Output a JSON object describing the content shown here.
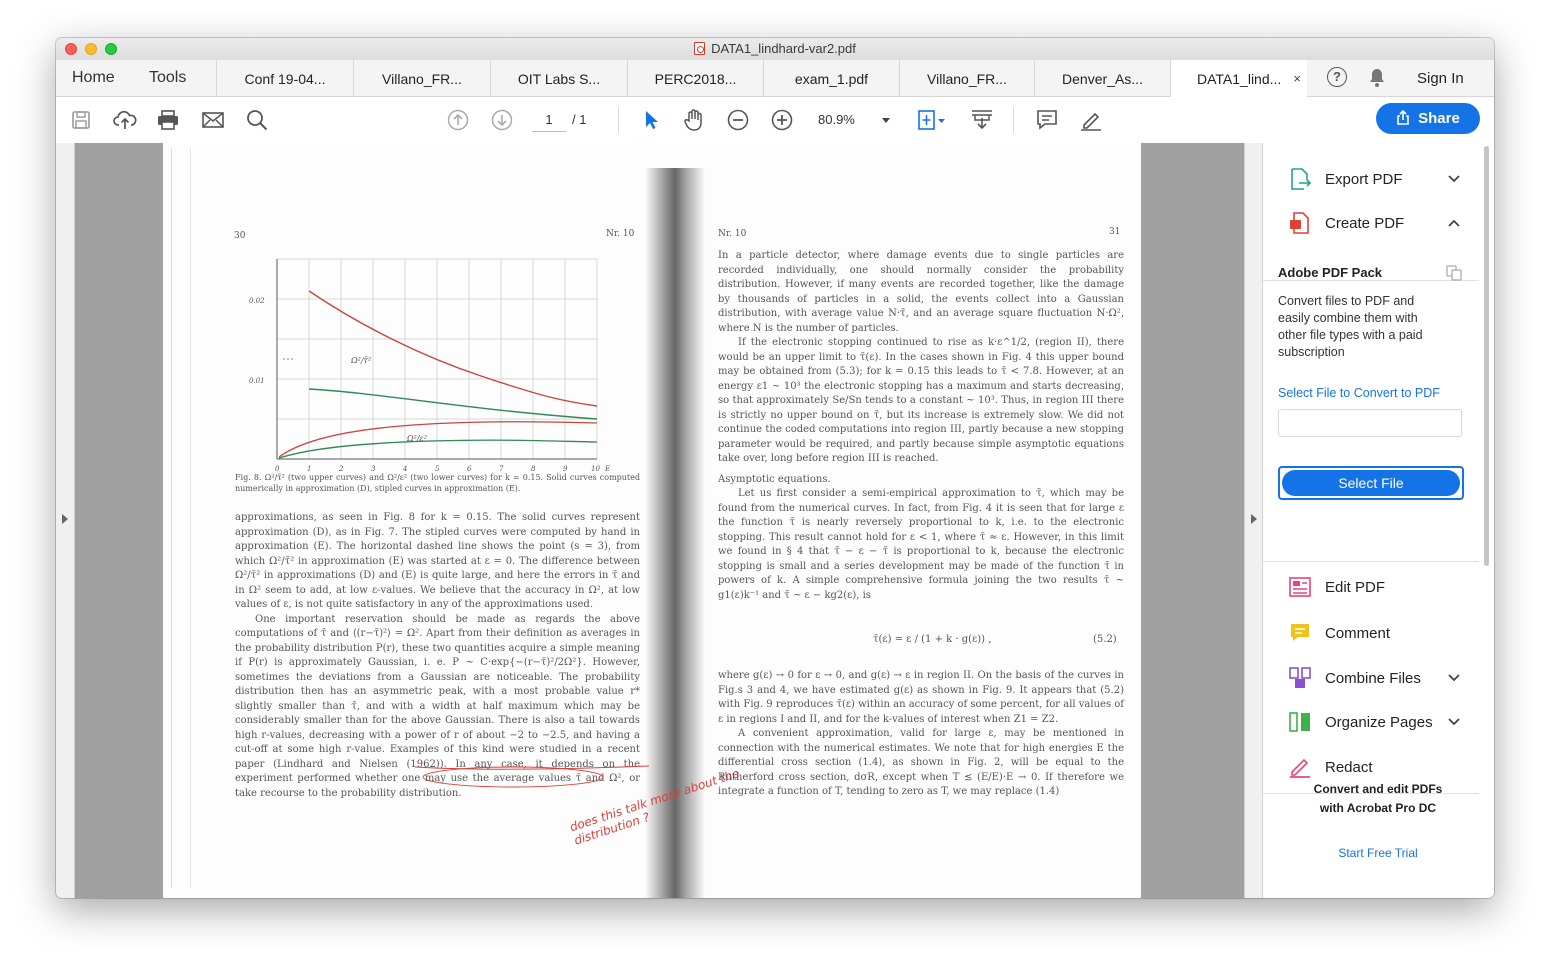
{
  "window": {
    "title": "DATA1_lindhard-var2.pdf"
  },
  "nav": {
    "home": "Home",
    "tools": "Tools"
  },
  "tabs": [
    {
      "label": "Conf 19-04..."
    },
    {
      "label": "Villano_FR..."
    },
    {
      "label": "OIT Labs S..."
    },
    {
      "label": "PERC2018..."
    },
    {
      "label": "exam_1.pdf"
    },
    {
      "label": "Villano_FR..."
    },
    {
      "label": "Denver_As..."
    },
    {
      "label": "DATA1_lind...",
      "close": "×"
    }
  ],
  "header": {
    "sign_in": "Sign In",
    "help": "?"
  },
  "toolbar": {
    "page_current": "1",
    "page_total": "/ 1",
    "zoom": "80.9%",
    "share": "Share"
  },
  "icons": [
    "save-icon",
    "upload-icon",
    "print-icon",
    "mail-icon",
    "search-icon",
    "page-up-icon",
    "page-down-icon",
    "select-arrow-icon",
    "hand-icon",
    "zoom-out-icon",
    "zoom-in-icon",
    "fit-page-icon",
    "scroll-mode-icon",
    "comment-icon",
    "sign-icon"
  ],
  "document": {
    "left_page_number": "30",
    "left_header": "Nr. 10",
    "right_header": "Nr. 10",
    "right_page_number": "31",
    "fig_caption": "Fig. 8. Ω²/τ̄² (two upper curves) and Ω²/ε² (two lower curves) for k = 0.15. Solid curves computed numerically in approximation (D), stipled curves in approximation (E).",
    "left_paragraphs": [
      "approximations, as seen in Fig. 8 for k = 0.15. The solid curves represent approximation (D), as in Fig. 7. The stipled curves were computed by hand in approximation (E). The horizontal dashed line shows the point (s = 3), from which Ω²/τ̄² in approximation (E) was started at ε = 0. The difference between Ω²/τ̄² in approximations (D) and (E) is quite large, and here the errors in τ̄ and in Ω² seem to add, at low ε-values. We believe that the accuracy in Ω², at low values of ε, is not quite satisfactory in any of the approximations used.",
      "One important reservation should be made as regards the above computations of τ̄ and ⟨(r−τ̄)²⟩ = Ω². Apart from their definition as averages in the probability distribution P(r), these two quantities acquire a simple meaning if P(r) is approximately Gaussian, i. e. P ~ C·exp{−(r−τ̄)²/2Ω²}. However, sometimes the deviations from a Gaussian are noticeable. The probability distribution then has an asymmetric peak, with a most probable value r* slightly smaller than τ̄, and with a width at half maximum which may be considerably smaller than for the above Gaussian. There is also a tail towards high r-values, decreasing with a power of r of about −2 to −2.5, and having a cut-off at some high r-value. Examples of this kind were studied in a recent paper (Lindhard and Nielsen (1962)). In any case, it depends on the experiment performed whether one may use the average values τ̄ and Ω², or take recourse to the probability distribution."
    ],
    "right_paragraphs": [
      "In a particle detector, where damage events due to single particles are recorded individually, one should normally consider the probability distribution. However, if many events are recorded together, like the damage by thousands of particles in a solid, the events collect into a Gaussian distribution, with average value N·τ̄, and an average square fluctuation N·Ω², where N is the number of particles.",
      "If the electronic stopping continued to rise as k·ε^1/2, (region II), there would be an upper limit to τ̄(ε). In the cases shown in Fig. 4 this upper bound may be obtained from (5.3); for k = 0.15 this leads to τ̄ < 7.8. However, at an energy ε1 ~ 10³ the electronic stopping has a maximum and starts decreasing, so that approximately Se/Sn tends to a constant ~ 10³. Thus, in region III there is strictly no upper bound on τ̄, but its increase is extremely slow. We did not continue the coded computations into region III, partly because a new stopping parameter would be required, and partly because simple asymptotic equations take over, long before region III is reached."
    ],
    "asymptotic_heading": "Asymptotic equations.",
    "right_paragraphs_2": [
      "Let us first consider a semi-empirical approximation to τ̄, which may be found from the numerical curves. In fact, from Fig. 4 it is seen that for large ε the function τ̄ is nearly reversely proportional to k, i.e. to the electronic stopping. This result cannot hold for ε < 1, where τ̄ ≈ ε. However, in this limit we found in § 4 that τ̄ − ε − τ̄ is proportional to k, because the electronic stopping is small and a series development may be made of the function τ̄ in powers of k. A simple comprehensive formula joining the two results τ̄ ~ g1(ε)k⁻¹ and τ̄ ~ ε − kg2(ε), is"
    ],
    "equation": "τ̄(ε) = ε / (1 + k · g(ε)) ,",
    "equation_number": "(5.2)",
    "right_paragraphs_3": [
      "where g(ε) → 0 for ε → 0, and g(ε) → ε in region II. On the basis of the curves in Fig.s 3 and 4, we have estimated g(ε) as shown in Fig. 9. It appears that (5.2) with Fig. 9 reproduces τ̄(ε) within an accuracy of some percent, for all values of ε in regions I and II, and for the k-values of interest when Z1 = Z2.",
      "A convenient approximation, valid for large ε, may be mentioned in connection with the numerical estimates. We note that for high energies E the differential cross section (1.4), as shown in Fig. 2, will be equal to the Rutherford cross section, dσR, except when T ≲ (E/E)·E → 0. If therefore we integrate a function of T, tending to zero as T, we may replace (1.4)"
    ],
    "handwritten_note": "does this talk more about the distribution ?",
    "figure_labels": {
      "y_ticks": [
        "0.02",
        "0.01"
      ],
      "x_ticks": [
        "0",
        "1",
        "2",
        "3",
        "4",
        "5",
        "6",
        "7",
        "8",
        "9",
        "10"
      ],
      "x_var": "E",
      "upper_curve": "Ω²/τ̄²",
      "lower_curve": "Ω²/ε²"
    }
  },
  "panel": {
    "export_pdf": "Export PDF",
    "create_pdf": "Create PDF",
    "pack_title": "Adobe PDF Pack",
    "pack_desc": "Convert files to PDF and easily combine them with other file types with a paid subscription",
    "pack_link": "Select File to Convert to PDF",
    "select_file": "Select File",
    "edit_pdf": "Edit PDF",
    "comment": "Comment",
    "combine_files": "Combine Files",
    "organize_pages": "Organize Pages",
    "redact": "Redact",
    "promo_line1": "Convert and edit PDFs",
    "promo_line2": "with Acrobat Pro DC",
    "start_trial": "Start Free Trial"
  },
  "colors": {
    "accent": "#1473e6",
    "export": "#1fa39a",
    "create": "#e23f35",
    "edit": "#e8457b",
    "comment": "#f1c21b",
    "combine": "#8a52cf",
    "organize": "#3fb14a",
    "redact": "#e8457b",
    "ink": "#d9413a"
  }
}
